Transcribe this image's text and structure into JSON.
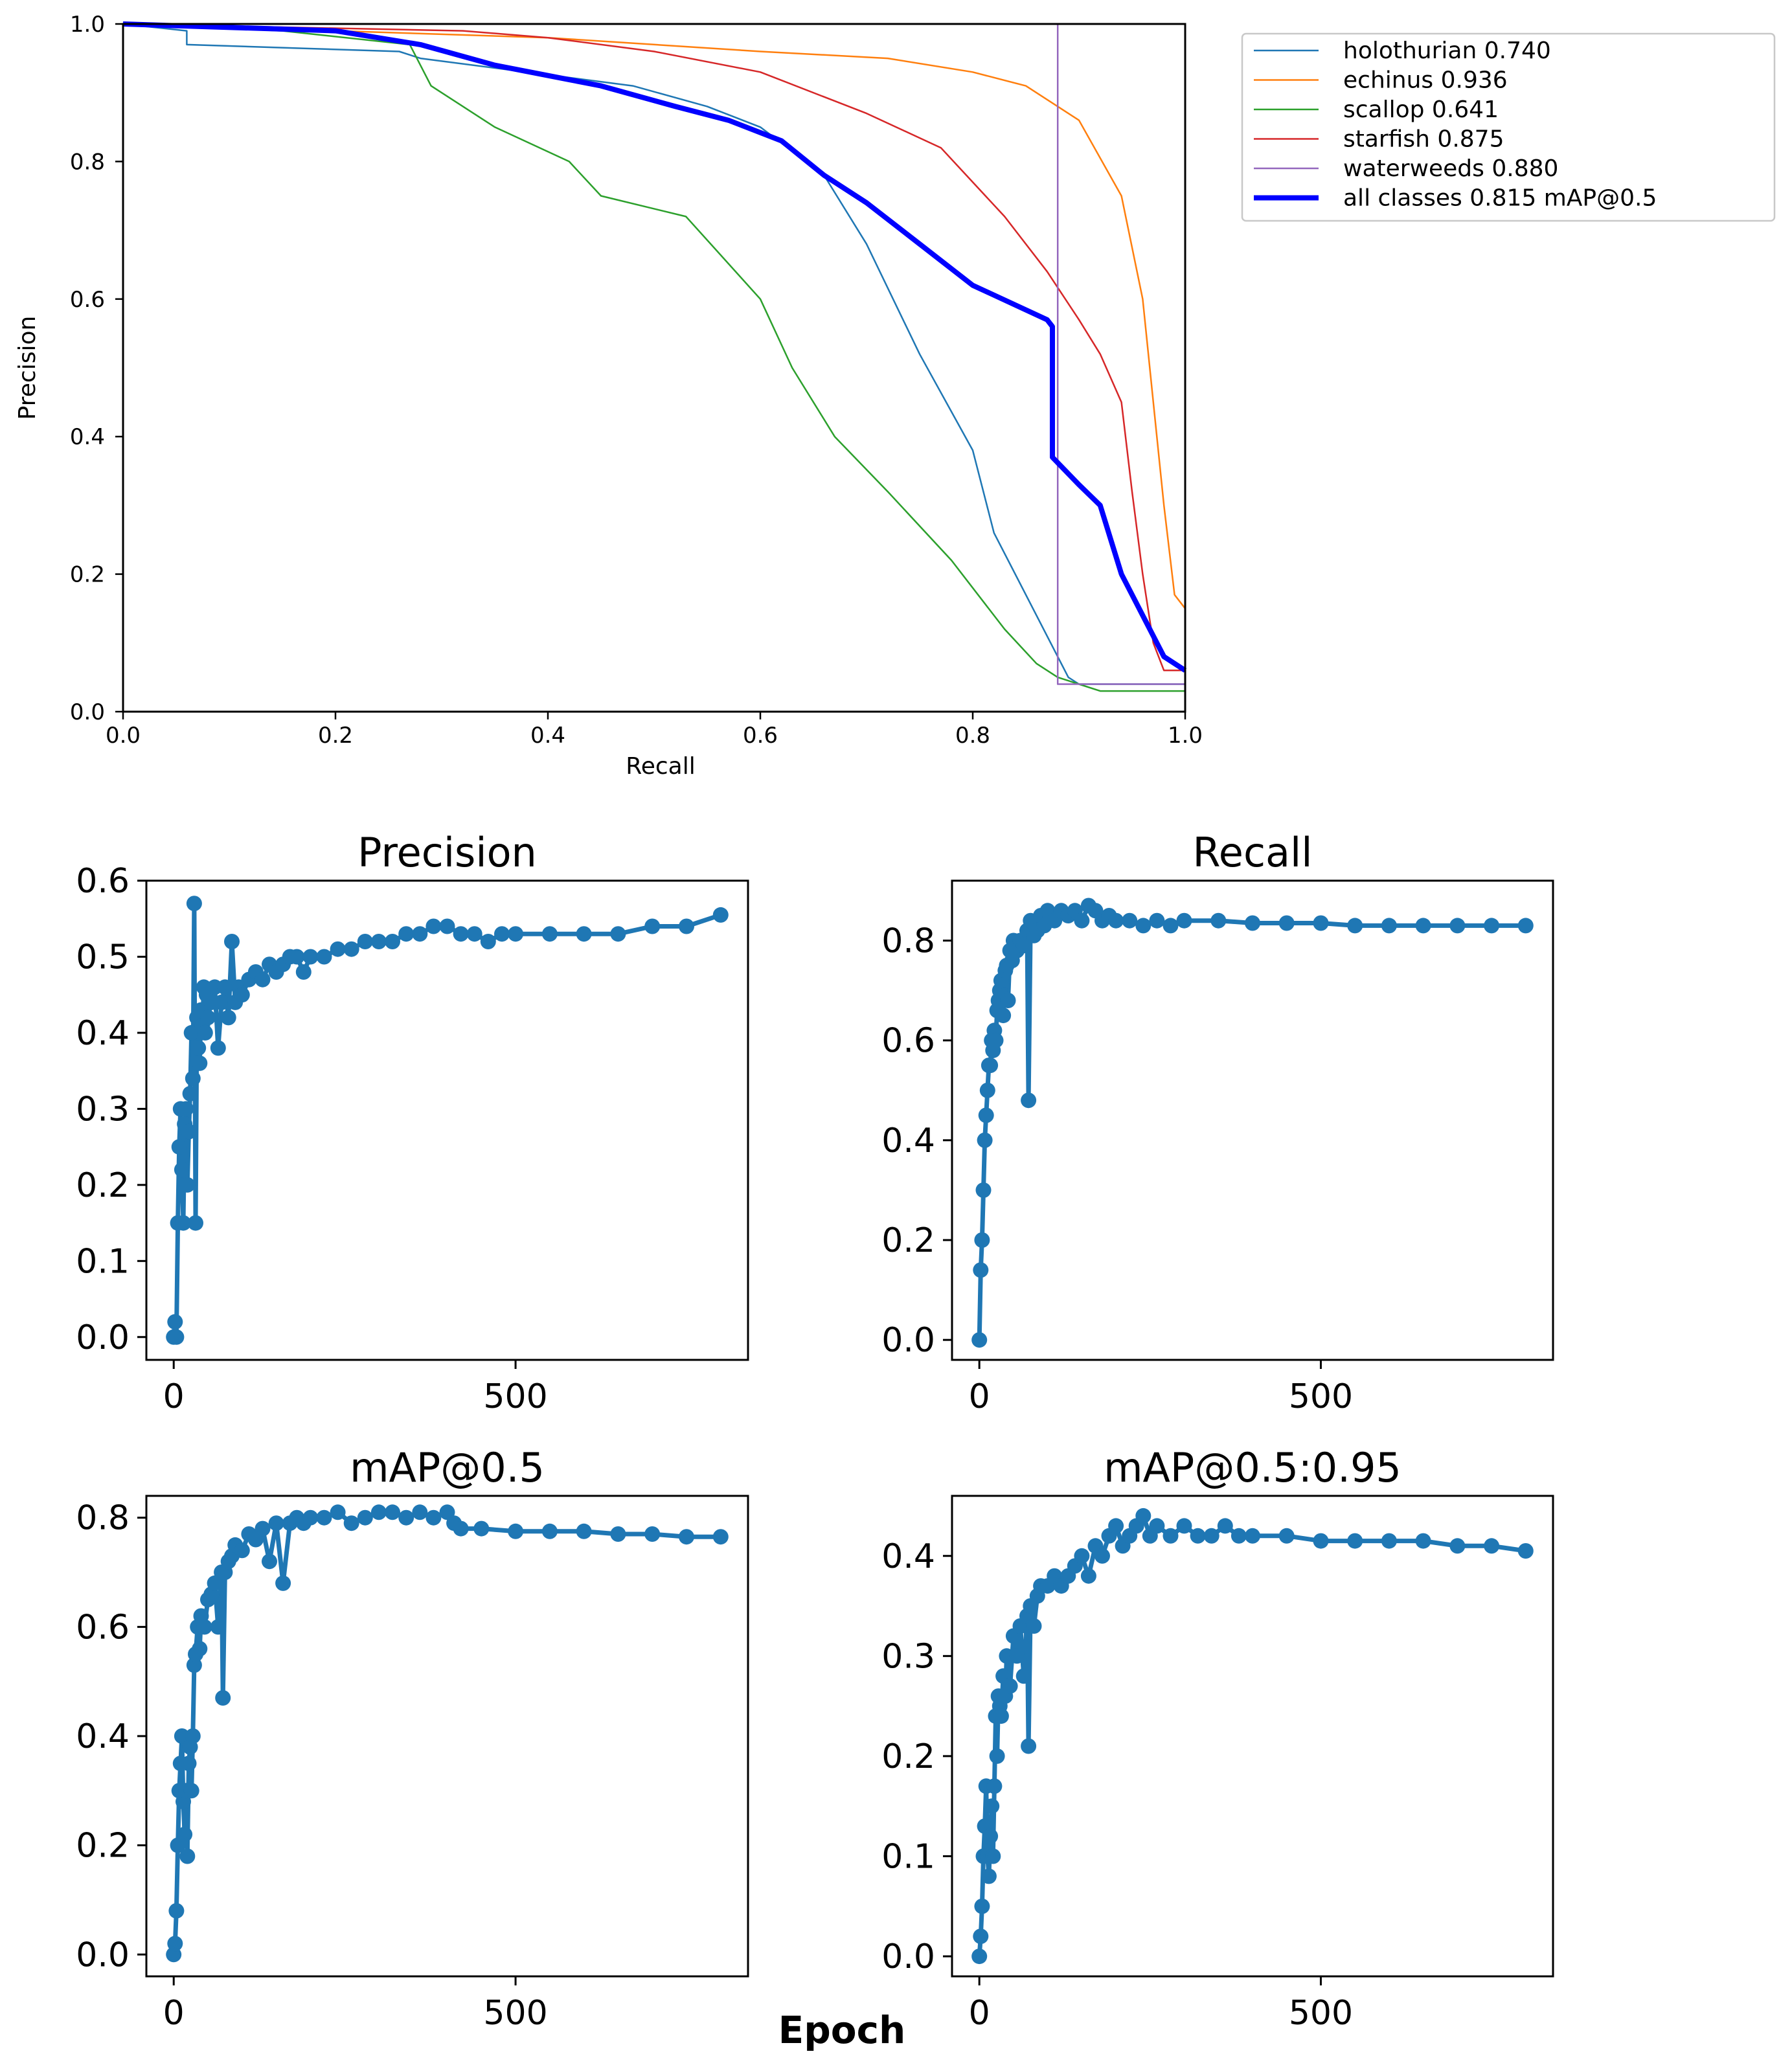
{
  "chart_data": [
    {
      "type": "line",
      "title": "",
      "xlabel": "Recall",
      "ylabel": "Precision",
      "xlim": [
        0,
        1
      ],
      "ylim": [
        0,
        1
      ],
      "xticks": [
        "0.0",
        "0.2",
        "0.4",
        "0.6",
        "0.8",
        "1.0"
      ],
      "yticks": [
        "0.0",
        "0.2",
        "0.4",
        "0.6",
        "0.8",
        "1.0"
      ],
      "legend_position": "outside-right-top",
      "series": [
        {
          "name": "holothurian 0.740",
          "color": "#1f77b4",
          "width": "thin",
          "x": [
            0,
            0.06,
            0.06,
            0.26,
            0.28,
            0.48,
            0.55,
            0.6,
            0.66,
            0.7,
            0.75,
            0.8,
            0.82,
            0.86,
            0.89,
            0.9,
            1.0
          ],
          "y": [
            1.0,
            0.99,
            0.97,
            0.96,
            0.95,
            0.91,
            0.88,
            0.85,
            0.78,
            0.68,
            0.52,
            0.38,
            0.26,
            0.14,
            0.05,
            0.04,
            0.04
          ]
        },
        {
          "name": "echinus 0.936",
          "color": "#ff7f0e",
          "width": "thin",
          "x": [
            0,
            0.2,
            0.4,
            0.6,
            0.72,
            0.8,
            0.85,
            0.9,
            0.94,
            0.96,
            0.97,
            0.98,
            0.99,
            1.0
          ],
          "y": [
            1.0,
            0.99,
            0.98,
            0.96,
            0.95,
            0.93,
            0.91,
            0.86,
            0.75,
            0.6,
            0.45,
            0.3,
            0.17,
            0.15
          ]
        },
        {
          "name": "scallop 0.641",
          "color": "#2ca02c",
          "width": "thin",
          "x": [
            0,
            0.15,
            0.27,
            0.29,
            0.35,
            0.42,
            0.45,
            0.53,
            0.6,
            0.63,
            0.67,
            0.72,
            0.78,
            0.83,
            0.86,
            0.88,
            0.9,
            0.92,
            1.0
          ],
          "y": [
            1.0,
            0.99,
            0.97,
            0.91,
            0.85,
            0.8,
            0.75,
            0.72,
            0.6,
            0.5,
            0.4,
            0.32,
            0.22,
            0.12,
            0.07,
            0.05,
            0.04,
            0.03,
            0.03
          ]
        },
        {
          "name": "starfish 0.875",
          "color": "#d62728",
          "width": "thin",
          "x": [
            0,
            0.32,
            0.4,
            0.5,
            0.6,
            0.7,
            0.77,
            0.83,
            0.87,
            0.9,
            0.92,
            0.94,
            0.95,
            0.96,
            0.97,
            0.98,
            1.0
          ],
          "y": [
            1.0,
            0.99,
            0.98,
            0.96,
            0.93,
            0.87,
            0.82,
            0.72,
            0.64,
            0.57,
            0.52,
            0.45,
            0.32,
            0.2,
            0.1,
            0.06,
            0.06
          ]
        },
        {
          "name": "waterweeds 0.880",
          "color": "#9467bd",
          "width": "thin",
          "x": [
            0,
            0.88,
            0.88,
            1.0
          ],
          "y": [
            1.0,
            1.0,
            0.04,
            0.04
          ]
        },
        {
          "name": "all classes 0.815 mAP@0.5",
          "color": "#0000ff",
          "width": "thick",
          "x": [
            0,
            0.2,
            0.28,
            0.35,
            0.45,
            0.52,
            0.57,
            0.62,
            0.66,
            0.7,
            0.75,
            0.8,
            0.87,
            0.875,
            0.875,
            0.9,
            0.92,
            0.94,
            0.96,
            0.98,
            1.0
          ],
          "y": [
            1.0,
            0.99,
            0.97,
            0.94,
            0.91,
            0.88,
            0.86,
            0.83,
            0.78,
            0.74,
            0.68,
            0.62,
            0.57,
            0.56,
            0.37,
            0.33,
            0.3,
            0.2,
            0.14,
            0.08,
            0.06
          ]
        }
      ]
    },
    {
      "type": "line",
      "title": "Precision",
      "xlabel": "",
      "ylabel": "",
      "xlim": [
        -40,
        840
      ],
      "ylim": [
        -0.03,
        0.6
      ],
      "xticks": [
        {
          "v": 0,
          "label": "0"
        },
        {
          "v": 500,
          "label": "500"
        }
      ],
      "yticks": [
        {
          "v": 0,
          "label": "0.0"
        },
        {
          "v": 0.1,
          "label": "0.1"
        },
        {
          "v": 0.2,
          "label": "0.2"
        },
        {
          "v": 0.3,
          "label": "0.3"
        },
        {
          "v": 0.4,
          "label": "0.4"
        },
        {
          "v": 0.5,
          "label": "0.5"
        },
        {
          "v": 0.6,
          "label": "0.6"
        }
      ],
      "series": [
        {
          "color": "#1f77b4",
          "x": [
            0,
            2,
            4,
            6,
            8,
            10,
            12,
            14,
            16,
            18,
            20,
            22,
            24,
            26,
            28,
            30,
            32,
            34,
            36,
            38,
            40,
            42,
            44,
            46,
            48,
            50,
            55,
            60,
            65,
            70,
            75,
            80,
            85,
            90,
            95,
            100,
            110,
            120,
            130,
            140,
            150,
            160,
            170,
            180,
            190,
            200,
            220,
            240,
            260,
            280,
            300,
            320,
            340,
            360,
            380,
            400,
            420,
            440,
            460,
            480,
            500,
            550,
            600,
            650,
            700,
            750,
            800
          ],
          "y": [
            0.0,
            0.02,
            0.0,
            0.15,
            0.25,
            0.3,
            0.22,
            0.15,
            0.28,
            0.3,
            0.2,
            0.27,
            0.32,
            0.4,
            0.34,
            0.57,
            0.15,
            0.42,
            0.38,
            0.36,
            0.43,
            0.41,
            0.46,
            0.4,
            0.45,
            0.42,
            0.44,
            0.46,
            0.38,
            0.44,
            0.46,
            0.42,
            0.52,
            0.44,
            0.46,
            0.45,
            0.47,
            0.48,
            0.47,
            0.49,
            0.48,
            0.49,
            0.5,
            0.5,
            0.48,
            0.5,
            0.5,
            0.51,
            0.51,
            0.52,
            0.52,
            0.52,
            0.53,
            0.53,
            0.54,
            0.54,
            0.53,
            0.53,
            0.52,
            0.53,
            0.53,
            0.53,
            0.53,
            0.53,
            0.54,
            0.54,
            0.555
          ]
        }
      ]
    },
    {
      "type": "line",
      "title": "Recall",
      "xlabel": "",
      "ylabel": "",
      "xlim": [
        -40,
        840
      ],
      "ylim": [
        -0.04,
        0.92
      ],
      "xticks": [
        {
          "v": 0,
          "label": "0"
        },
        {
          "v": 500,
          "label": "500"
        }
      ],
      "yticks": [
        {
          "v": 0,
          "label": "0.0"
        },
        {
          "v": 0.2,
          "label": "0.2"
        },
        {
          "v": 0.4,
          "label": "0.4"
        },
        {
          "v": 0.6,
          "label": "0.6"
        },
        {
          "v": 0.8,
          "label": "0.8"
        }
      ],
      "series": [
        {
          "color": "#1f77b4",
          "x": [
            0,
            2,
            4,
            6,
            8,
            10,
            12,
            14,
            16,
            18,
            20,
            22,
            24,
            26,
            28,
            30,
            32,
            35,
            38,
            40,
            42,
            45,
            48,
            50,
            55,
            60,
            65,
            70,
            72,
            75,
            80,
            85,
            90,
            95,
            100,
            110,
            120,
            130,
            140,
            150,
            160,
            170,
            180,
            190,
            200,
            220,
            240,
            260,
            280,
            300,
            350,
            400,
            450,
            500,
            550,
            600,
            650,
            700,
            750,
            800
          ],
          "y": [
            0.0,
            0.14,
            0.2,
            0.3,
            0.4,
            0.45,
            0.5,
            0.55,
            0.55,
            0.6,
            0.58,
            0.62,
            0.6,
            0.66,
            0.68,
            0.7,
            0.72,
            0.65,
            0.74,
            0.75,
            0.68,
            0.78,
            0.76,
            0.8,
            0.78,
            0.8,
            0.79,
            0.82,
            0.48,
            0.84,
            0.81,
            0.82,
            0.85,
            0.83,
            0.86,
            0.84,
            0.86,
            0.85,
            0.86,
            0.84,
            0.87,
            0.86,
            0.84,
            0.85,
            0.84,
            0.84,
            0.83,
            0.84,
            0.83,
            0.84,
            0.84,
            0.835,
            0.835,
            0.835,
            0.83,
            0.83,
            0.83,
            0.83,
            0.83,
            0.83
          ]
        }
      ]
    },
    {
      "type": "line",
      "title": "mAP@0.5",
      "xlabel": "",
      "ylabel": "",
      "xlim": [
        -40,
        840
      ],
      "ylim": [
        -0.04,
        0.84
      ],
      "xticks": [
        {
          "v": 0,
          "label": "0"
        },
        {
          "v": 500,
          "label": "500"
        }
      ],
      "yticks": [
        {
          "v": 0,
          "label": "0.0"
        },
        {
          "v": 0.2,
          "label": "0.2"
        },
        {
          "v": 0.4,
          "label": "0.4"
        },
        {
          "v": 0.6,
          "label": "0.6"
        },
        {
          "v": 0.8,
          "label": "0.8"
        }
      ],
      "series": [
        {
          "color": "#1f77b4",
          "x": [
            0,
            2,
            4,
            6,
            8,
            10,
            12,
            14,
            16,
            18,
            20,
            22,
            24,
            26,
            28,
            30,
            32,
            35,
            38,
            40,
            45,
            50,
            55,
            60,
            65,
            70,
            72,
            75,
            80,
            85,
            90,
            100,
            110,
            120,
            130,
            140,
            150,
            160,
            170,
            180,
            190,
            200,
            220,
            240,
            260,
            280,
            300,
            320,
            340,
            360,
            380,
            400,
            410,
            420,
            450,
            500,
            550,
            600,
            650,
            700,
            750,
            800
          ],
          "y": [
            0.0,
            0.02,
            0.08,
            0.2,
            0.3,
            0.35,
            0.4,
            0.28,
            0.22,
            0.3,
            0.18,
            0.35,
            0.38,
            0.3,
            0.4,
            0.53,
            0.55,
            0.6,
            0.56,
            0.62,
            0.6,
            0.65,
            0.66,
            0.68,
            0.6,
            0.7,
            0.47,
            0.7,
            0.72,
            0.73,
            0.75,
            0.74,
            0.77,
            0.76,
            0.78,
            0.72,
            0.79,
            0.68,
            0.79,
            0.8,
            0.79,
            0.8,
            0.8,
            0.81,
            0.79,
            0.8,
            0.81,
            0.81,
            0.8,
            0.81,
            0.8,
            0.81,
            0.79,
            0.78,
            0.78,
            0.775,
            0.775,
            0.775,
            0.77,
            0.77,
            0.765,
            0.765
          ]
        }
      ]
    },
    {
      "type": "line",
      "title": "mAP@0.5:0.95",
      "xlabel": "",
      "ylabel": "",
      "xlim": [
        -40,
        840
      ],
      "ylim": [
        -0.02,
        0.46
      ],
      "xticks": [
        {
          "v": 0,
          "label": "0"
        },
        {
          "v": 500,
          "label": "500"
        }
      ],
      "yticks": [
        {
          "v": 0,
          "label": "0.0"
        },
        {
          "v": 0.1,
          "label": "0.1"
        },
        {
          "v": 0.2,
          "label": "0.2"
        },
        {
          "v": 0.3,
          "label": "0.3"
        },
        {
          "v": 0.4,
          "label": "0.4"
        }
      ],
      "series": [
        {
          "color": "#1f77b4",
          "x": [
            0,
            2,
            4,
            6,
            8,
            10,
            12,
            14,
            16,
            18,
            20,
            22,
            24,
            26,
            28,
            30,
            32,
            35,
            38,
            40,
            45,
            50,
            55,
            60,
            65,
            70,
            72,
            75,
            80,
            85,
            90,
            100,
            110,
            120,
            130,
            140,
            150,
            160,
            170,
            180,
            190,
            200,
            210,
            220,
            230,
            240,
            250,
            260,
            280,
            300,
            320,
            340,
            360,
            380,
            400,
            450,
            500,
            550,
            600,
            650,
            700,
            750,
            800
          ],
          "y": [
            0.0,
            0.02,
            0.05,
            0.1,
            0.13,
            0.17,
            0.1,
            0.08,
            0.12,
            0.15,
            0.1,
            0.17,
            0.24,
            0.2,
            0.26,
            0.25,
            0.24,
            0.28,
            0.26,
            0.3,
            0.27,
            0.32,
            0.3,
            0.33,
            0.28,
            0.34,
            0.21,
            0.35,
            0.33,
            0.36,
            0.37,
            0.37,
            0.38,
            0.37,
            0.38,
            0.39,
            0.4,
            0.38,
            0.41,
            0.4,
            0.42,
            0.43,
            0.41,
            0.42,
            0.43,
            0.44,
            0.42,
            0.43,
            0.42,
            0.43,
            0.42,
            0.42,
            0.43,
            0.42,
            0.42,
            0.42,
            0.415,
            0.415,
            0.415,
            0.415,
            0.41,
            0.41,
            0.405
          ]
        }
      ]
    }
  ],
  "figure": {
    "common_xlabel": "Epoch"
  }
}
